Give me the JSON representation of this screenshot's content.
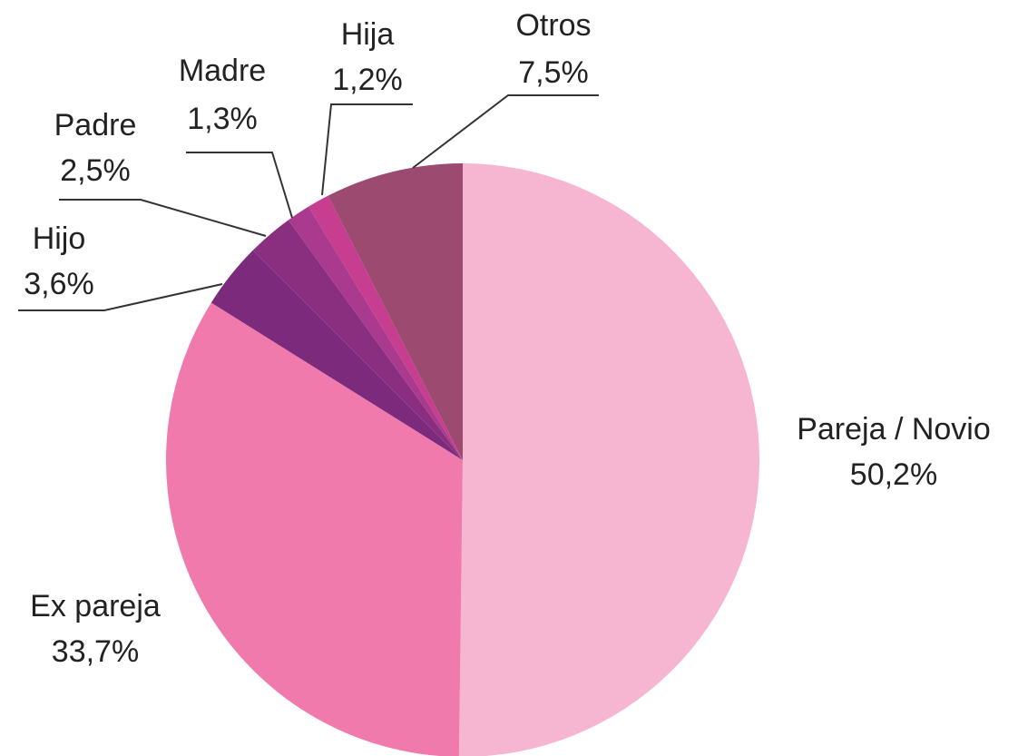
{
  "chart_data": {
    "type": "pie",
    "categories": [
      "Pareja / Novio",
      "Ex pareja",
      "Hijo",
      "Padre",
      "Madre",
      "Hija",
      "Otros"
    ],
    "values": [
      50.2,
      33.7,
      3.6,
      2.5,
      1.3,
      1.2,
      7.5
    ],
    "value_labels": [
      "50,2%",
      "33,7%",
      "3,6%",
      "2,5%",
      "1,3%",
      "1,2%",
      "7,5%"
    ],
    "colors": [
      "#f6b6d1",
      "#ef7aab",
      "#7b2a7c",
      "#8a2f80",
      "#aa3a8e",
      "#c73d90",
      "#9d4a70"
    ]
  }
}
